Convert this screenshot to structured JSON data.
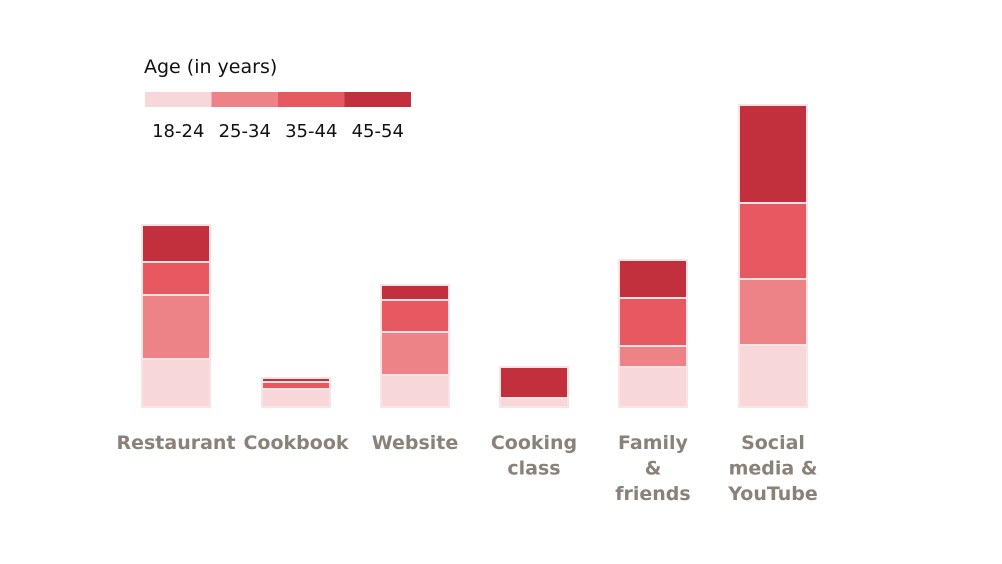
{
  "chart_data": {
    "type": "bar",
    "stacked": true,
    "legend_title": "Age (in years)",
    "categories": [
      [
        "Restaurant"
      ],
      [
        "Cookbook"
      ],
      [
        "Website"
      ],
      [
        "Cooking",
        "class"
      ],
      [
        "Family",
        "&",
        "friends"
      ],
      [
        "Social",
        "media &",
        "YouTube"
      ]
    ],
    "series": [
      {
        "name": "18-24",
        "color": "#f8d7da",
        "values": [
          48,
          18,
          32,
          9,
          40,
          62
        ]
      },
      {
        "name": "25-34",
        "color": "#ee8387",
        "values": [
          64,
          0,
          43,
          0,
          21,
          66
        ]
      },
      {
        "name": "35-44",
        "color": "#e85861",
        "values": [
          33,
          7,
          32,
          0,
          48,
          76
        ]
      },
      {
        "name": "45-54",
        "color": "#c1303c",
        "values": [
          37,
          4,
          15,
          31,
          38,
          98
        ]
      }
    ],
    "ylim": [
      0,
      310
    ],
    "grid": false,
    "legend_position": "top-left"
  }
}
